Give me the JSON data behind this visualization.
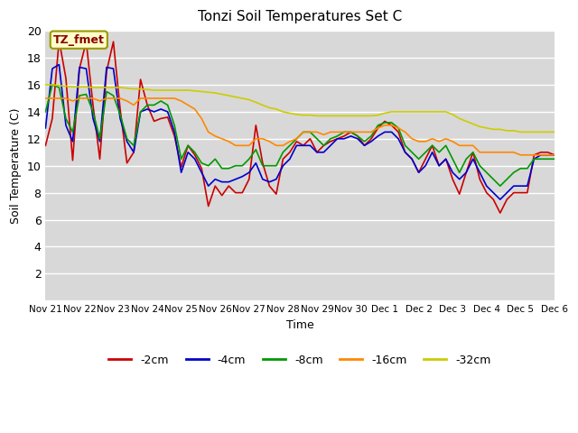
{
  "title": "Tonzi Soil Temperatures Set C",
  "xlabel": "Time",
  "ylabel": "Soil Temperature (C)",
  "ylim": [
    0,
    20
  ],
  "yticks": [
    0,
    2,
    4,
    6,
    8,
    10,
    12,
    14,
    16,
    18,
    20
  ],
  "annotation": "TZ_fmet",
  "colors": {
    "-2cm": "#cc0000",
    "-4cm": "#0000cc",
    "-8cm": "#009900",
    "-16cm": "#ff8800",
    "-32cm": "#cccc00"
  },
  "bg_color": "#d8d8d8",
  "x_tick_labels": [
    "Nov 21",
    "Nov 22",
    "Nov 23",
    "Nov 24",
    "Nov 25",
    "Nov 26",
    "Nov 27",
    "Nov 28",
    "Nov 29",
    "Nov 30",
    "Dec 1",
    "Dec 2",
    "Dec 3",
    "Dec 4",
    "Dec 5",
    "Dec 6"
  ],
  "n_days": 16,
  "series": {
    "-2cm": [
      11.5,
      13.5,
      19.3,
      16.5,
      10.4,
      17.2,
      19.2,
      14.5,
      10.5,
      17.0,
      19.2,
      14.2,
      10.2,
      11.0,
      16.4,
      14.5,
      13.3,
      13.5,
      13.6,
      12.2,
      9.9,
      11.5,
      10.8,
      9.8,
      7.0,
      8.5,
      7.8,
      8.5,
      8.0,
      8.0,
      9.0,
      13.0,
      10.2,
      8.5,
      7.9,
      10.5,
      11.0,
      11.8,
      11.5,
      12.0,
      11.0,
      11.5,
      11.8,
      12.0,
      12.2,
      12.5,
      12.2,
      11.5,
      12.0,
      12.8,
      13.3,
      13.0,
      12.5,
      11.0,
      10.5,
      9.5,
      10.5,
      11.5,
      10.0,
      10.5,
      9.0,
      7.9,
      9.5,
      11.0,
      9.0,
      8.0,
      7.5,
      6.5,
      7.5,
      8.0,
      8.0,
      8.0,
      10.8,
      11.0,
      11.0,
      10.8
    ],
    "-4cm": [
      12.8,
      17.2,
      17.5,
      13.0,
      11.8,
      17.3,
      17.2,
      13.5,
      11.8,
      17.3,
      17.2,
      13.5,
      11.8,
      11.0,
      14.0,
      14.2,
      14.0,
      14.2,
      14.0,
      12.5,
      9.5,
      11.0,
      10.5,
      9.5,
      8.5,
      9.0,
      8.8,
      8.8,
      9.0,
      9.2,
      9.5,
      10.2,
      9.0,
      8.8,
      9.0,
      10.0,
      10.5,
      11.5,
      11.5,
      11.5,
      11.0,
      11.0,
      11.5,
      12.0,
      12.0,
      12.2,
      12.0,
      11.5,
      11.8,
      12.2,
      12.5,
      12.5,
      12.0,
      11.0,
      10.5,
      9.5,
      10.0,
      11.0,
      10.0,
      10.5,
      9.5,
      9.0,
      9.5,
      10.5,
      9.5,
      8.5,
      8.0,
      7.5,
      8.0,
      8.5,
      8.5,
      8.5,
      10.5,
      10.8,
      10.8,
      10.8
    ],
    "-8cm": [
      14.0,
      16.0,
      15.8,
      13.5,
      12.5,
      15.2,
      15.3,
      14.0,
      12.0,
      15.5,
      15.2,
      13.8,
      12.0,
      11.5,
      14.0,
      14.5,
      14.5,
      14.8,
      14.5,
      13.0,
      10.5,
      11.5,
      11.0,
      10.2,
      10.0,
      10.5,
      9.8,
      9.8,
      10.0,
      10.0,
      10.5,
      11.2,
      10.0,
      10.0,
      10.0,
      11.0,
      11.5,
      12.0,
      12.5,
      12.5,
      12.0,
      11.5,
      12.0,
      12.2,
      12.5,
      12.5,
      12.2,
      11.8,
      12.2,
      13.0,
      13.2,
      13.2,
      12.8,
      11.5,
      11.0,
      10.5,
      11.0,
      11.5,
      11.0,
      11.5,
      10.5,
      9.5,
      10.5,
      11.0,
      10.0,
      9.5,
      9.0,
      8.5,
      9.0,
      9.5,
      9.8,
      9.8,
      10.5,
      10.5,
      10.5,
      10.5
    ],
    "-16cm": [
      15.0,
      15.0,
      15.0,
      15.0,
      14.8,
      15.0,
      15.0,
      15.0,
      14.8,
      15.0,
      15.0,
      15.0,
      14.8,
      14.5,
      15.0,
      15.0,
      15.0,
      15.0,
      15.0,
      15.0,
      14.8,
      14.5,
      14.2,
      13.5,
      12.5,
      12.2,
      12.0,
      11.8,
      11.5,
      11.5,
      11.5,
      12.0,
      12.0,
      11.8,
      11.5,
      11.5,
      11.8,
      12.0,
      12.5,
      12.5,
      12.5,
      12.3,
      12.5,
      12.5,
      12.5,
      12.5,
      12.5,
      12.5,
      12.5,
      12.8,
      13.0,
      13.0,
      12.8,
      12.5,
      12.0,
      11.8,
      11.8,
      12.0,
      11.8,
      12.0,
      11.8,
      11.5,
      11.5,
      11.5,
      11.0,
      11.0,
      11.0,
      11.0,
      11.0,
      11.0,
      10.8,
      10.8,
      10.8,
      10.8,
      10.8,
      10.8
    ],
    "-32cm": [
      16.0,
      16.0,
      15.95,
      15.9,
      15.85,
      15.85,
      15.85,
      15.8,
      15.8,
      15.8,
      15.8,
      15.8,
      15.75,
      15.7,
      15.7,
      15.65,
      15.6,
      15.6,
      15.6,
      15.6,
      15.6,
      15.6,
      15.55,
      15.5,
      15.45,
      15.4,
      15.3,
      15.2,
      15.1,
      15.0,
      14.9,
      14.7,
      14.5,
      14.3,
      14.2,
      14.0,
      13.9,
      13.8,
      13.75,
      13.75,
      13.7,
      13.7,
      13.7,
      13.7,
      13.7,
      13.7,
      13.7,
      13.7,
      13.7,
      13.75,
      13.9,
      14.0,
      14.0,
      14.0,
      14.0,
      14.0,
      14.0,
      14.0,
      14.0,
      14.0,
      13.8,
      13.5,
      13.3,
      13.1,
      12.9,
      12.8,
      12.7,
      12.7,
      12.6,
      12.6,
      12.5,
      12.5,
      12.5,
      12.5,
      12.5,
      12.5
    ]
  }
}
